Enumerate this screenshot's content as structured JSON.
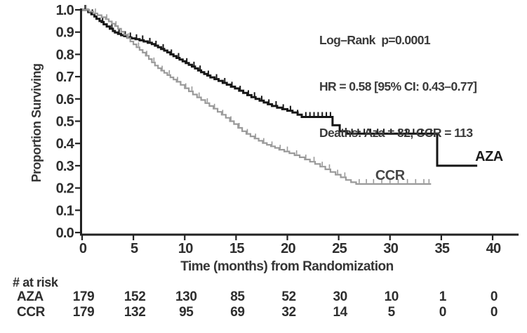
{
  "figure": {
    "annotation": {
      "line1": "Log–Rank  p=0.0001",
      "line2": "HR = 0.58 [95% CI: 0.43–0.77]",
      "line3": "Deaths: Aza = 82, CCR = 113"
    },
    "ylabel": "Proportion Surviving",
    "xlabel": "Time (months) from Randomization"
  },
  "risk_table": {
    "title": "# at risk",
    "times": [
      0,
      5,
      10,
      15,
      20,
      25,
      30,
      35,
      40
    ],
    "rows": [
      {
        "label": "AZA",
        "values": [
          "179",
          "152",
          "130",
          "85",
          "52",
          "30",
          "10",
          "1",
          "0"
        ]
      },
      {
        "label": "CCR",
        "values": [
          "179",
          "132",
          "95",
          "69",
          "32",
          "14",
          "5",
          "0",
          "0"
        ]
      }
    ]
  },
  "chart_data": {
    "type": "line",
    "variant": "kaplan_meier_step",
    "title": "",
    "xlabel": "Time (months) from Randomization",
    "ylabel": "Proportion Surviving",
    "xlim": [
      0,
      40
    ],
    "ylim": [
      0,
      1
    ],
    "xticks": [
      "0",
      "5",
      "10",
      "15",
      "20",
      "25",
      "30",
      "35",
      "40"
    ],
    "yticks": [
      "0.0",
      "0.1",
      "0.2",
      "0.3",
      "0.4",
      "0.5",
      "0.6",
      "0.7",
      "0.8",
      "0.9",
      "1.0"
    ],
    "grid": false,
    "legend": "inline-labels",
    "annotations": [
      "Log–Rank  p=0.0001",
      "HR = 0.58 [95% CI: 0.43–0.77]",
      "Deaths: Aza = 82, CCR = 113"
    ],
    "series": [
      {
        "name": "AZA",
        "color": "#161616",
        "label_color": "#1c1c1c",
        "label_pos": {
          "x": 38.3,
          "y": 0.322,
          "anchor": "start"
        },
        "end_t": 38.5,
        "points": [
          [
            0,
            1.0
          ],
          [
            0.6,
            0.99
          ],
          [
            0.9,
            0.98
          ],
          [
            1.2,
            0.97
          ],
          [
            1.4,
            0.96
          ],
          [
            1.7,
            0.95
          ],
          [
            1.9,
            0.945
          ],
          [
            2.1,
            0.935
          ],
          [
            2.4,
            0.925
          ],
          [
            2.7,
            0.915
          ],
          [
            3.0,
            0.905
          ],
          [
            3.2,
            0.898
          ],
          [
            3.5,
            0.892
          ],
          [
            3.8,
            0.886
          ],
          [
            4.1,
            0.882
          ],
          [
            4.4,
            0.876
          ],
          [
            4.8,
            0.872
          ],
          [
            5.2,
            0.868
          ],
          [
            5.6,
            0.863
          ],
          [
            6.0,
            0.858
          ],
          [
            6.4,
            0.852
          ],
          [
            6.8,
            0.846
          ],
          [
            7.1,
            0.839
          ],
          [
            7.4,
            0.832
          ],
          [
            7.7,
            0.824
          ],
          [
            8.0,
            0.817
          ],
          [
            8.3,
            0.809
          ],
          [
            8.6,
            0.8
          ],
          [
            8.9,
            0.792
          ],
          [
            9.2,
            0.784
          ],
          [
            9.5,
            0.777
          ],
          [
            9.8,
            0.769
          ],
          [
            10.1,
            0.761
          ],
          [
            10.4,
            0.753
          ],
          [
            10.7,
            0.745
          ],
          [
            11.0,
            0.737
          ],
          [
            11.3,
            0.728
          ],
          [
            11.6,
            0.72
          ],
          [
            11.9,
            0.712
          ],
          [
            12.2,
            0.705
          ],
          [
            12.5,
            0.697
          ],
          [
            12.9,
            0.689
          ],
          [
            13.3,
            0.681
          ],
          [
            13.7,
            0.672
          ],
          [
            14.1,
            0.664
          ],
          [
            14.5,
            0.655
          ],
          [
            14.9,
            0.647
          ],
          [
            15.3,
            0.637
          ],
          [
            15.7,
            0.627
          ],
          [
            16.1,
            0.617
          ],
          [
            16.5,
            0.608
          ],
          [
            16.9,
            0.6
          ],
          [
            17.3,
            0.592
          ],
          [
            17.7,
            0.584
          ],
          [
            18.1,
            0.576
          ],
          [
            18.5,
            0.568
          ],
          [
            19.0,
            0.561
          ],
          [
            19.5,
            0.554
          ],
          [
            20.0,
            0.547
          ],
          [
            20.5,
            0.539
          ],
          [
            21.0,
            0.529
          ],
          [
            21.4,
            0.519
          ],
          [
            24.4,
            0.482
          ],
          [
            25.1,
            0.455
          ],
          [
            25.8,
            0.444
          ],
          [
            34.6,
            0.3
          ]
        ],
        "censor_ticks": [
          0.3,
          1.0,
          2.0,
          2.9,
          3.6,
          4.2,
          4.7,
          5.3,
          5.9,
          6.6,
          7.2,
          7.9,
          8.7,
          9.4,
          10.2,
          10.9,
          11.5,
          12.3,
          13.1,
          13.9,
          14.6,
          15.4,
          16.2,
          16.8,
          17.5,
          18.2,
          18.9,
          19.6,
          20.3,
          21.0,
          21.8,
          22.2,
          22.6,
          23.0,
          23.4,
          23.8,
          24.2,
          26.3,
          26.9,
          27.5,
          28.1,
          28.8,
          29.4,
          30.1,
          30.9,
          31.6,
          32.3,
          33.1,
          34.0
        ]
      },
      {
        "name": "CCR",
        "color": "#9a9a9a",
        "label_color": "#474747",
        "label_pos": {
          "x": 30.0,
          "y": 0.237,
          "anchor": "middle"
        },
        "end_t": 34.0,
        "points": [
          [
            0,
            1.0
          ],
          [
            0.7,
            0.992
          ],
          [
            1.1,
            0.984
          ],
          [
            1.5,
            0.976
          ],
          [
            1.9,
            0.967
          ],
          [
            2.3,
            0.958
          ],
          [
            2.6,
            0.948
          ],
          [
            2.9,
            0.938
          ],
          [
            3.2,
            0.927
          ],
          [
            3.5,
            0.915
          ],
          [
            3.8,
            0.902
          ],
          [
            4.1,
            0.888
          ],
          [
            4.4,
            0.873
          ],
          [
            4.7,
            0.858
          ],
          [
            5.0,
            0.845
          ],
          [
            5.3,
            0.832
          ],
          [
            5.6,
            0.82
          ],
          [
            5.9,
            0.808
          ],
          [
            6.2,
            0.794
          ],
          [
            6.5,
            0.779
          ],
          [
            6.8,
            0.764
          ],
          [
            7.1,
            0.75
          ],
          [
            7.4,
            0.738
          ],
          [
            7.7,
            0.727
          ],
          [
            8.0,
            0.717
          ],
          [
            8.3,
            0.707
          ],
          [
            8.6,
            0.697
          ],
          [
            8.9,
            0.687
          ],
          [
            9.2,
            0.677
          ],
          [
            9.6,
            0.663
          ],
          [
            10.0,
            0.648
          ],
          [
            10.4,
            0.634
          ],
          [
            10.8,
            0.62
          ],
          [
            11.2,
            0.607
          ],
          [
            11.6,
            0.595
          ],
          [
            12.0,
            0.581
          ],
          [
            12.4,
            0.568
          ],
          [
            12.8,
            0.556
          ],
          [
            13.2,
            0.542
          ],
          [
            13.6,
            0.529
          ],
          [
            14.0,
            0.515
          ],
          [
            14.4,
            0.5
          ],
          [
            14.8,
            0.487
          ],
          [
            15.2,
            0.47
          ],
          [
            15.6,
            0.455
          ],
          [
            16.0,
            0.443
          ],
          [
            16.4,
            0.432
          ],
          [
            16.8,
            0.422
          ],
          [
            17.2,
            0.412
          ],
          [
            17.6,
            0.402
          ],
          [
            18.0,
            0.394
          ],
          [
            18.4,
            0.387
          ],
          [
            18.8,
            0.38
          ],
          [
            19.2,
            0.372
          ],
          [
            19.7,
            0.364
          ],
          [
            20.2,
            0.356
          ],
          [
            20.7,
            0.347
          ],
          [
            21.2,
            0.338
          ],
          [
            21.7,
            0.328
          ],
          [
            22.2,
            0.318
          ],
          [
            22.7,
            0.308
          ],
          [
            23.2,
            0.296
          ],
          [
            23.7,
            0.284
          ],
          [
            24.2,
            0.272
          ],
          [
            24.7,
            0.26
          ],
          [
            25.2,
            0.248
          ],
          [
            25.7,
            0.236
          ],
          [
            26.2,
            0.226
          ],
          [
            26.7,
            0.218
          ]
        ],
        "censor_ticks": [
          0.4,
          1.3,
          2.4,
          3.3,
          4.5,
          5.5,
          6.3,
          7.0,
          7.8,
          8.5,
          9.3,
          10.1,
          10.7,
          11.4,
          12.2,
          12.9,
          13.7,
          14.5,
          15.3,
          16.1,
          16.9,
          17.7,
          18.5,
          19.3,
          20.0,
          20.9,
          21.8,
          22.6,
          23.4,
          24.1,
          24.9,
          25.6,
          27.0,
          27.7,
          28.4,
          29.2,
          30.0,
          30.8,
          31.7,
          32.5,
          33.3,
          33.8
        ]
      }
    ]
  }
}
